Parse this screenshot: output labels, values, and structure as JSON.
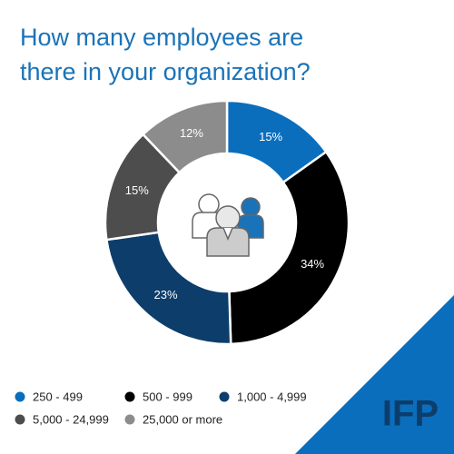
{
  "chart_data": {
    "type": "donut",
    "title": "How many employees are there in your organization?",
    "categories": [
      "250 - 499",
      "500 - 999",
      "1,000 - 4,999",
      "5,000 - 24,999",
      "25,000 or more"
    ],
    "values": [
      15,
      34,
      23,
      15,
      12
    ],
    "value_labels": [
      "15%",
      "34%",
      "23%",
      "15%",
      "12%"
    ],
    "colors": [
      "#0a6ebd",
      "#000000",
      "#0d3d6b",
      "#4d4d4d",
      "#8c8c8c"
    ],
    "legend": "bottom"
  },
  "logo": "IFP"
}
